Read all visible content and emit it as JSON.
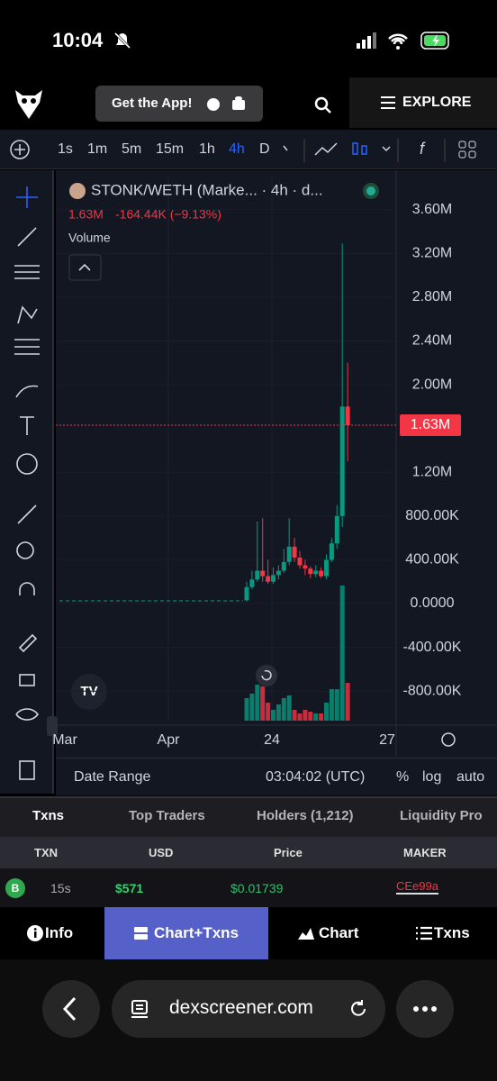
{
  "status_bar": {
    "time": "10:04"
  },
  "header": {
    "app_button": "Get the App!",
    "explore": "EXPLORE"
  },
  "toolbar": {
    "timeframes": [
      "1s",
      "1m",
      "5m",
      "15m",
      "1h",
      "4h",
      "D"
    ],
    "active_timeframe": "4h"
  },
  "chart_data": {
    "type": "candlestick",
    "title": "STONK/WETH (Marke... · 4h · d...",
    "last_price": "1.63M",
    "change": "-164.44K (−9.13%)",
    "volume_label": "Volume",
    "current_price": {
      "value": 1630000,
      "label": "1.63M"
    },
    "ylim": [
      -1070000,
      3910000
    ],
    "yticks": [
      {
        "value": 3600000,
        "label": "3.60M"
      },
      {
        "value": 3200000,
        "label": "3.20M"
      },
      {
        "value": 2800000,
        "label": "2.80M"
      },
      {
        "value": 2400000,
        "label": "2.40M"
      },
      {
        "value": 2000000,
        "label": "2.00M"
      },
      {
        "value": 1200000,
        "label": "1.20M"
      },
      {
        "value": 800000,
        "label": "800.00K"
      },
      {
        "value": 400000,
        "label": "400.00K"
      },
      {
        "value": 0,
        "label": "0.0000"
      },
      {
        "value": -400000,
        "label": "-400.00K"
      },
      {
        "value": -800000,
        "label": "-800.00K"
      }
    ],
    "xticks": [
      "Mar",
      "Apr",
      "24",
      "27"
    ],
    "categories": [
      null,
      null,
      null,
      null,
      null,
      null,
      null,
      null,
      null,
      null,
      null,
      null,
      null,
      null,
      null,
      null,
      null,
      null,
      null,
      null
    ],
    "open": [
      30000,
      150000,
      220000,
      300000,
      250000,
      200000,
      260000,
      300000,
      380000,
      520000,
      420000,
      350000,
      320000,
      270000,
      300000,
      250000,
      400000,
      550000,
      800000,
      1800000
    ],
    "high": [
      200000,
      300000,
      750000,
      780000,
      400000,
      330000,
      350000,
      500000,
      780000,
      600000,
      480000,
      400000,
      340000,
      350000,
      330000,
      450000,
      600000,
      900000,
      3290000,
      2200000
    ],
    "low": [
      20000,
      130000,
      200000,
      200000,
      180000,
      180000,
      220000,
      280000,
      350000,
      380000,
      320000,
      260000,
      230000,
      240000,
      230000,
      220000,
      380000,
      500000,
      700000,
      1300000
    ],
    "close": [
      150000,
      220000,
      300000,
      250000,
      200000,
      260000,
      300000,
      380000,
      520000,
      420000,
      350000,
      320000,
      270000,
      300000,
      250000,
      400000,
      550000,
      800000,
      1800000,
      1630000
    ],
    "volume": [
      25,
      30,
      40,
      38,
      20,
      12,
      18,
      25,
      28,
      12,
      8,
      12,
      10,
      8,
      8,
      20,
      35,
      35,
      150,
      42
    ],
    "up_color": "#089981",
    "down_color": "#f23645",
    "grid": true
  },
  "chart_footer": {
    "date_range": "Date Range",
    "clock": "03:04:02 (UTC)",
    "percent": "%",
    "log": "log",
    "auto": "auto"
  },
  "tabs": [
    "Txns",
    "Top Traders",
    "Holders (1,212)",
    "Liquidity Pro"
  ],
  "table": {
    "headers": [
      "TXN",
      "USD",
      "Price",
      "MAKER"
    ],
    "rows": [
      [
        "B",
        "15s",
        "$571",
        "$0.01739",
        "CEe99a"
      ]
    ]
  },
  "bottom_nav": [
    "Info",
    "Chart+Txns",
    "Chart",
    "Txns"
  ],
  "browser": {
    "url": "dexscreener.com"
  }
}
